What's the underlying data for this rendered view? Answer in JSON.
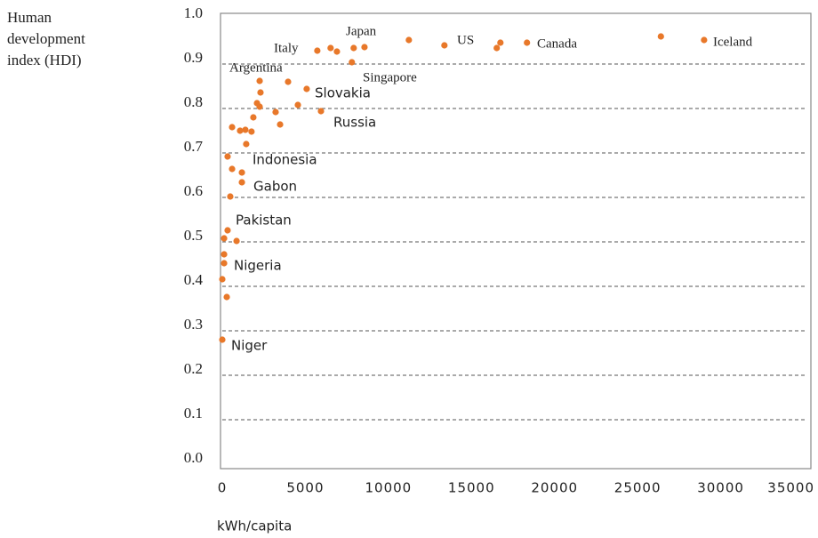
{
  "chart_data": {
    "type": "scatter",
    "y_label": "Human development index (HDI)",
    "x_label": "kWh/capita",
    "xlim": [
      0,
      35000
    ],
    "xticks": [
      0,
      5000,
      10000,
      15000,
      20000,
      25000,
      30000,
      35000
    ],
    "ylim": [
      0,
      1
    ],
    "yticks": [
      {
        "value": 0,
        "label": "0.0"
      },
      0.1,
      0.2,
      0.3,
      0.4,
      0.5,
      0.6,
      0.7,
      0.8,
      0.9,
      {
        "value": 1,
        "label": "1.0"
      }
    ],
    "grid": true,
    "series": [
      {
        "color": "#e8782a",
        "x": [
          29000,
          26400,
          18340,
          16740,
          16520,
          13370,
          11230,
          8560,
          7910,
          7800,
          6900,
          6520,
          5720,
          3960,
          2300,
          2250,
          5080,
          5940,
          4550,
          3210,
          3480,
          2250,
          2090,
          1870,
          1760,
          1390,
          1070,
          1440,
          590,
          320,
          590,
          1180,
          1180,
          480,
          320,
          110,
          860,
          110,
          110,
          0,
          270,
          0
        ],
        "values": [
          0.954,
          0.962,
          0.948,
          0.948,
          0.936,
          0.942,
          0.954,
          0.938,
          0.936,
          0.904,
          0.928,
          0.936,
          0.93,
          0.86,
          0.836,
          0.804,
          0.844,
          0.794,
          0.808,
          0.792,
          0.764,
          0.862,
          0.812,
          0.78,
          0.748,
          0.752,
          0.75,
          0.72,
          0.758,
          0.692,
          0.664,
          0.656,
          0.634,
          0.602,
          0.526,
          0.508,
          0.502,
          0.472,
          0.452,
          0.416,
          0.376,
          0.28
        ]
      }
    ],
    "annotations": [
      "Japan",
      "US",
      "Canada",
      "Iceland",
      "Italy",
      "Argentina",
      "Singapore",
      "Slovakia",
      "Russia",
      "Indonesia",
      "Gabon",
      "Pakistan",
      "Nigeria",
      "Niger"
    ]
  }
}
